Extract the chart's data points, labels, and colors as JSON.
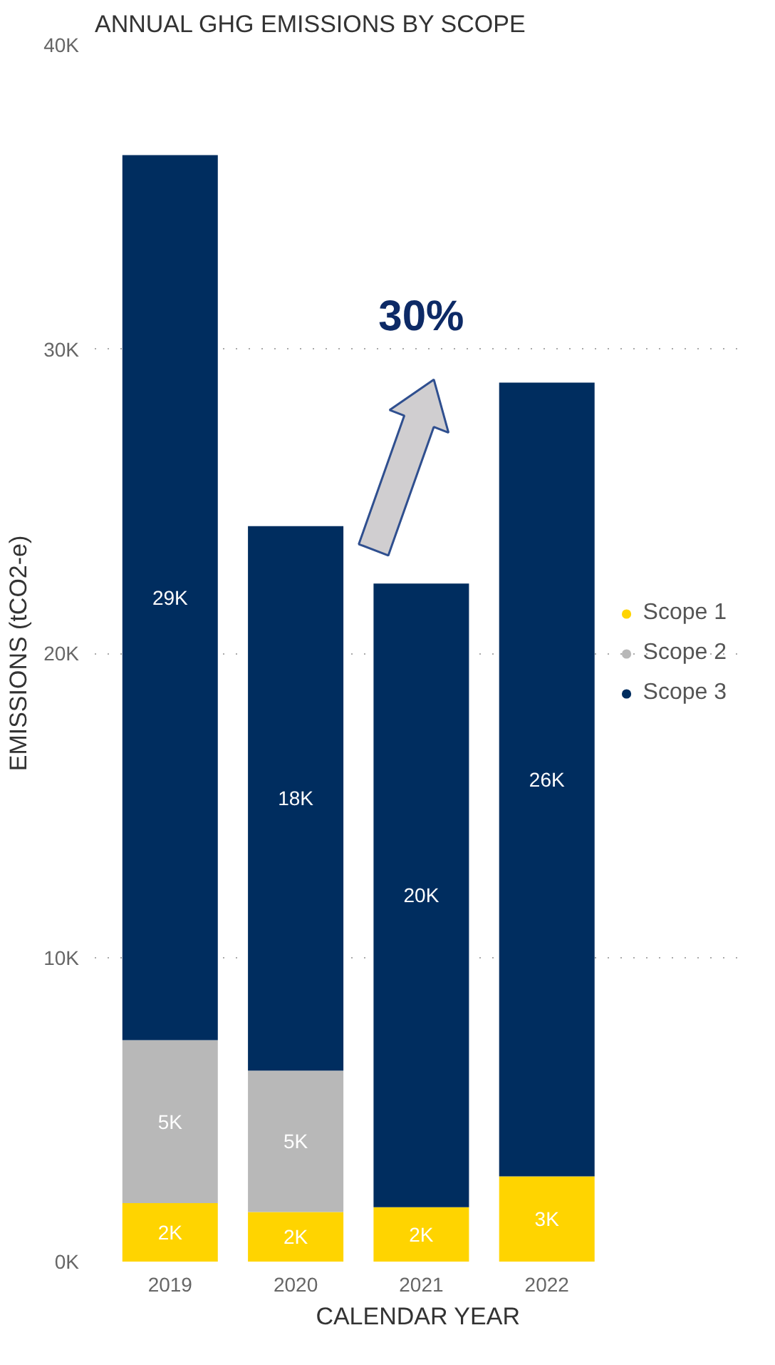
{
  "chart_data": {
    "type": "bar",
    "title": "ANNUAL GHG EMISSIONS BY SCOPE",
    "xlabel": "CALENDAR YEAR",
    "ylabel": "EMISSIONS (tCO2-e)",
    "categories": [
      "2019",
      "2020",
      "2021",
      "2022"
    ],
    "stacked": true,
    "series": [
      {
        "name": "Scope 1",
        "color": "#ffd400",
        "values": [
          1920,
          1630,
          1790,
          2800
        ],
        "value_labels": [
          "2K",
          "2K",
          "2K",
          "3K"
        ]
      },
      {
        "name": "Scope 2",
        "color": "#b8b8b8",
        "values": [
          5360,
          4650,
          null,
          null
        ],
        "value_labels": [
          "5K",
          "5K",
          null,
          null
        ]
      },
      {
        "name": "Scope 3",
        "color": "#002d5f",
        "values": [
          29100,
          17900,
          20500,
          26100
        ],
        "value_labels": [
          "29K",
          "18K",
          "20K",
          "26K"
        ]
      }
    ],
    "ylim": [
      0,
      40000
    ],
    "yticks": [
      {
        "value": 0,
        "label": "0K"
      },
      {
        "value": 10000,
        "label": "10K"
      },
      {
        "value": 20000,
        "label": "20K"
      },
      {
        "value": 30000,
        "label": "30K"
      },
      {
        "value": 40000,
        "label": "40K"
      }
    ],
    "grid": "y",
    "legend": "right",
    "annotations": [
      "30%"
    ]
  }
}
